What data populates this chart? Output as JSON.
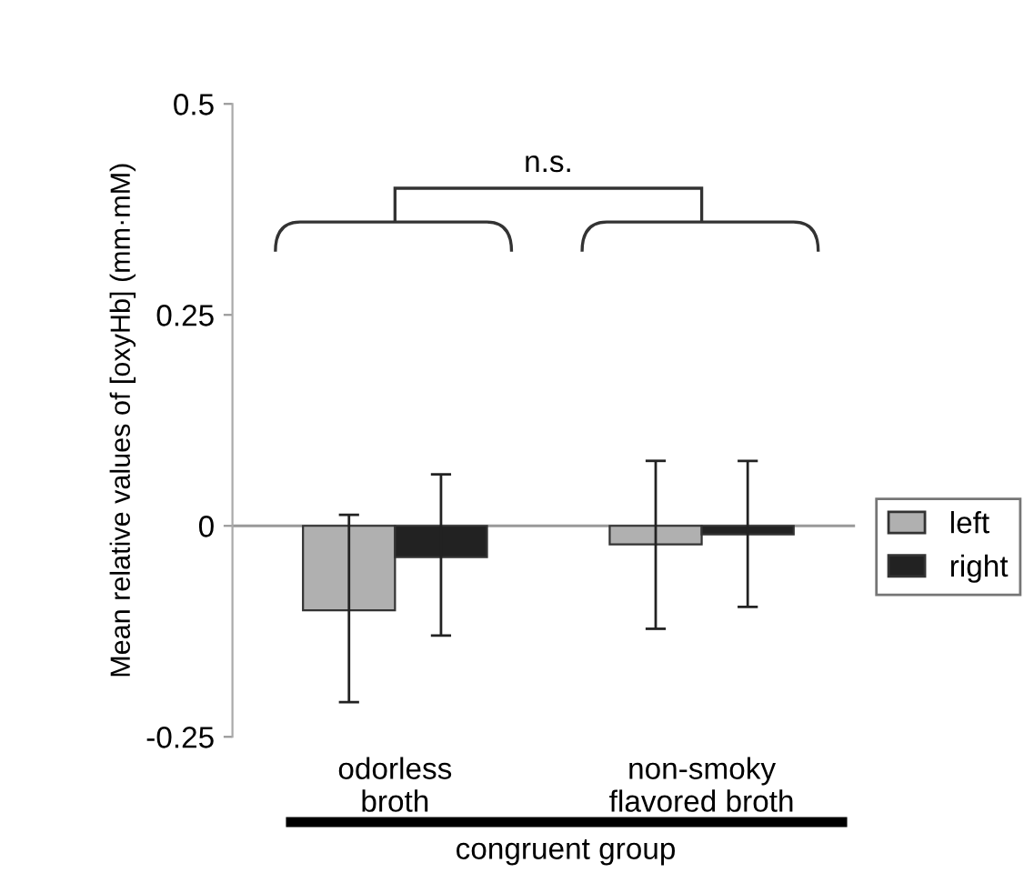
{
  "chart_data": {
    "type": "bar",
    "ylabel": "Mean relative values of [oxyHb] (mm·mM)",
    "categories": [
      "odorless\nbroth",
      "non-smoky\nflavored broth"
    ],
    "series": [
      {
        "name": "left",
        "color": "#b0b0b0",
        "values": [
          -0.1,
          -0.022
        ],
        "errors": [
          [
            -0.209,
            0.013
          ],
          [
            -0.122,
            0.077
          ]
        ]
      },
      {
        "name": "right",
        "color": "#222222",
        "values": [
          -0.037,
          -0.01
        ],
        "errors": [
          [
            -0.13,
            0.061
          ],
          [
            -0.096,
            0.077
          ]
        ]
      }
    ],
    "ylim": [
      -0.25,
      0.5
    ],
    "yticks": [
      -0.25,
      0,
      0.25,
      0.5
    ],
    "ref_lines": [
      {
        "axis": "y",
        "value": 0,
        "color": "#999999"
      }
    ],
    "annotations": [
      "n.s.",
      "congruent group"
    ],
    "legend": "right",
    "grid": false
  }
}
